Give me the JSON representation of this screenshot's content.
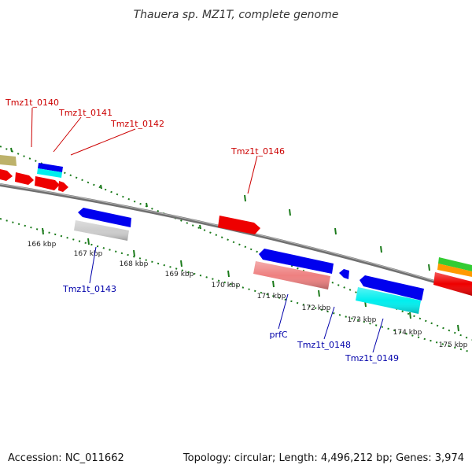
{
  "title": "Thauera sp. MZ1T, complete genome",
  "footer": {
    "accession": "Accession: NC_011662",
    "summary": "Topology: circular; Length: 4,496,212 bp; Genes: 3,974"
  },
  "colors": {
    "backbone": "#7a7a7a",
    "tick": "#1a7a1a",
    "label_top": "#cc0000",
    "label_bottom": "#0000aa",
    "red": "#ee0000",
    "blue": "#0000ee",
    "cyan": "#00eeee",
    "gray": "#cccccc",
    "pink": "#ee8080",
    "olive": "#bdb26b",
    "green": "#33cc33",
    "orange": "#ff9900"
  },
  "kbp_labels": [
    "166 kbp",
    "167 kbp",
    "168 kbp",
    "169 kbp",
    "170 kbp",
    "171 kbp",
    "172 kbp",
    "173 kbp",
    "174 kbp",
    "175 kbp"
  ],
  "gene_labels_top": [
    "Tmz1t_0140",
    "Tmz1t_0141",
    "Tmz1t_0142",
    "Tmz1t_0146"
  ],
  "gene_labels_bottom": [
    "Tmz1t_0143",
    "prfC",
    "Tmz1t_0148",
    "Tmz1t_0149"
  ]
}
